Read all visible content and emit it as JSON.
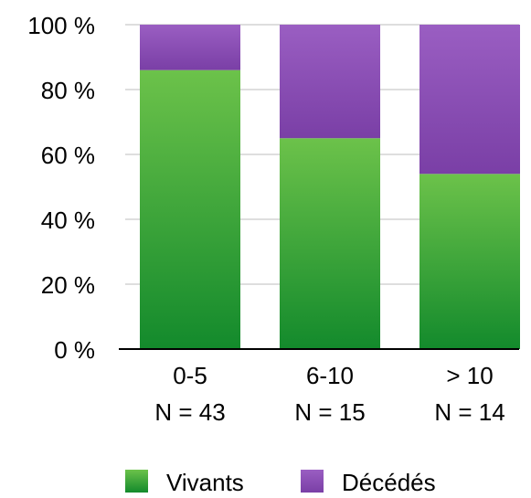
{
  "chart_data": {
    "type": "bar",
    "stacked": true,
    "categories": [
      "0-5",
      "6-10",
      "> 10"
    ],
    "category_sublabels": [
      "N = 43",
      "N = 15",
      "N = 14"
    ],
    "series": [
      {
        "name": "Vivants",
        "values": [
          86,
          65,
          54
        ],
        "color": "#2fa82f"
      },
      {
        "name": "Décédés",
        "values": [
          14,
          35,
          46
        ],
        "color": "#8a4fb3"
      }
    ],
    "title": "",
    "xlabel": "",
    "ylabel": "",
    "ylim": [
      0,
      100
    ],
    "yticks": [
      "0 %",
      "20 %",
      "40 %",
      "60 %",
      "80 %",
      "100 %"
    ],
    "grid": true,
    "legend_position": "bottom"
  }
}
